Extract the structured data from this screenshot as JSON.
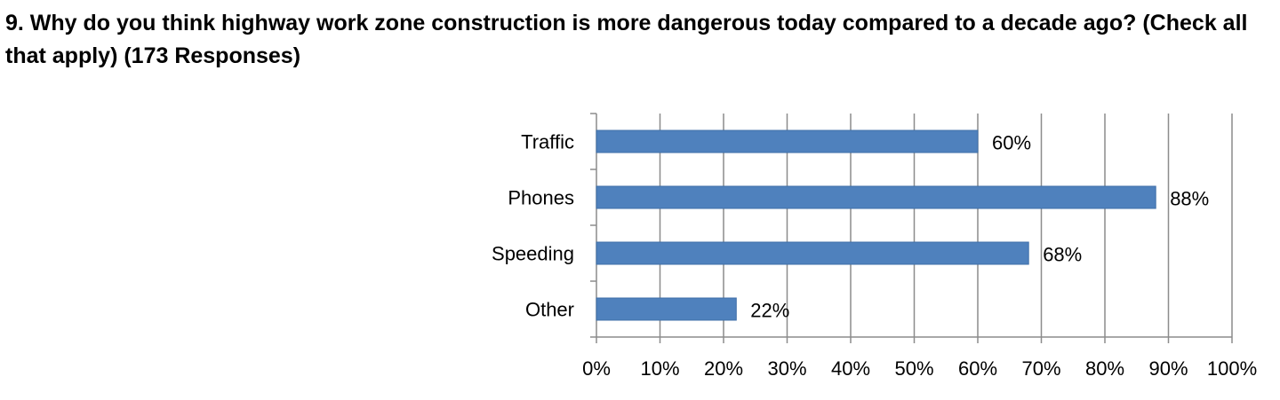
{
  "question": {
    "title": "9. Why do you think highway work zone construction is more dangerous today compared to a decade ago? (Check all that apply) (173 Responses)"
  },
  "chart_data": {
    "type": "bar",
    "orientation": "horizontal",
    "categories": [
      "Traffic",
      "Phones",
      "Speeding",
      "Other"
    ],
    "values": [
      60,
      88,
      68,
      22
    ],
    "data_labels": [
      "60%",
      "88%",
      "68%",
      "22%"
    ],
    "x_ticks": [
      "0%",
      "10%",
      "20%",
      "30%",
      "40%",
      "50%",
      "60%",
      "70%",
      "80%",
      "90%",
      "100%"
    ],
    "xlim": [
      0,
      100
    ],
    "grid": true,
    "legend": false,
    "bar_color": "#4f81bd",
    "grid_color": "#8c8c8c",
    "axis_color": "#8c8c8c"
  }
}
